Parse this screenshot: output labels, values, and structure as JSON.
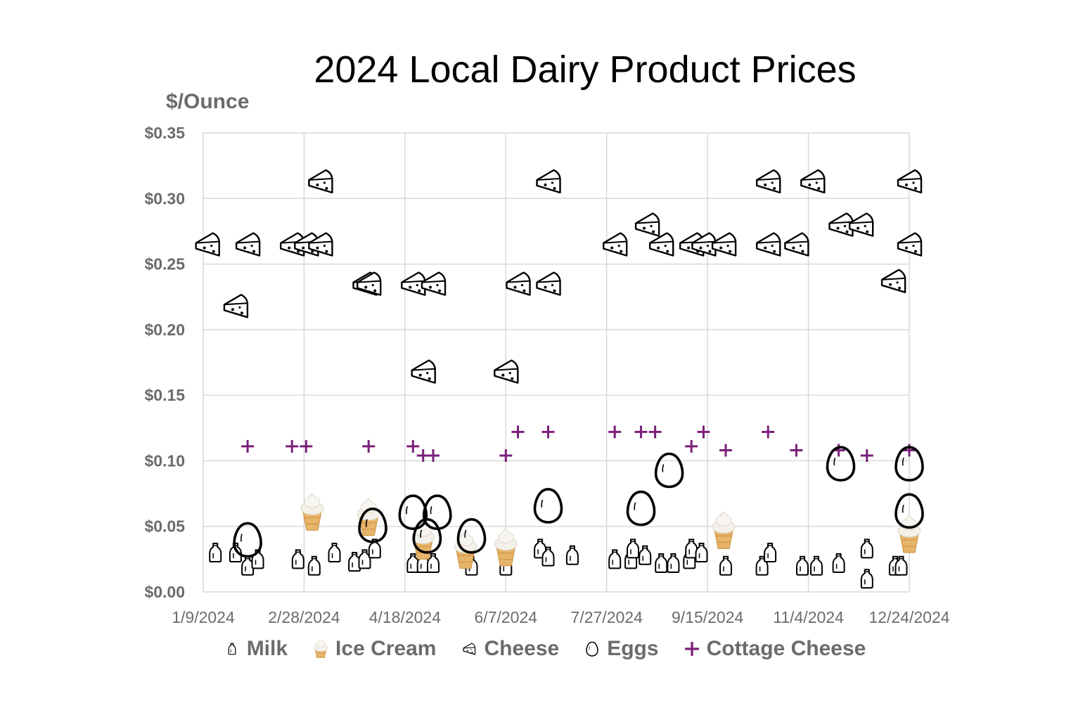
{
  "chart_data": {
    "type": "scatter",
    "title": "2024 Local Dairy Product Prices",
    "ylabel": "$/Ounce",
    "xlabel": "",
    "xlim": [
      "2024-01-09",
      "2024-12-24"
    ],
    "ylim": [
      0,
      0.35
    ],
    "x_ticks": [
      "1/9/2024",
      "2/28/2024",
      "4/18/2024",
      "6/7/2024",
      "7/27/2024",
      "9/15/2024",
      "11/4/2024",
      "12/24/2024"
    ],
    "y_ticks": [
      "$0.00",
      "$0.05",
      "$0.10",
      "$0.15",
      "$0.20",
      "$0.25",
      "$0.30",
      "$0.35"
    ],
    "grid": true,
    "legend_position": "bottom",
    "series": [
      {
        "name": "Milk",
        "marker": "milk-bottle-icon",
        "color": "#000000",
        "points": [
          {
            "x": "2024-01-15",
            "y": 0.03
          },
          {
            "x": "2024-01-25",
            "y": 0.03
          },
          {
            "x": "2024-01-31",
            "y": 0.02
          },
          {
            "x": "2024-02-05",
            "y": 0.025
          },
          {
            "x": "2024-02-25",
            "y": 0.025
          },
          {
            "x": "2024-03-04",
            "y": 0.02
          },
          {
            "x": "2024-03-14",
            "y": 0.03
          },
          {
            "x": "2024-03-24",
            "y": 0.023
          },
          {
            "x": "2024-03-29",
            "y": 0.025
          },
          {
            "x": "2024-04-03",
            "y": 0.033
          },
          {
            "x": "2024-04-22",
            "y": 0.022
          },
          {
            "x": "2024-04-27",
            "y": 0.022
          },
          {
            "x": "2024-05-02",
            "y": 0.022
          },
          {
            "x": "2024-05-21",
            "y": 0.02
          },
          {
            "x": "2024-06-07",
            "y": 0.02
          },
          {
            "x": "2024-06-24",
            "y": 0.033
          },
          {
            "x": "2024-06-28",
            "y": 0.027
          },
          {
            "x": "2024-07-10",
            "y": 0.028
          },
          {
            "x": "2024-07-31",
            "y": 0.025
          },
          {
            "x": "2024-08-08",
            "y": 0.025
          },
          {
            "x": "2024-08-09",
            "y": 0.033
          },
          {
            "x": "2024-08-15",
            "y": 0.028
          },
          {
            "x": "2024-08-23",
            "y": 0.022
          },
          {
            "x": "2024-08-29",
            "y": 0.022
          },
          {
            "x": "2024-09-06",
            "y": 0.025
          },
          {
            "x": "2024-09-07",
            "y": 0.033
          },
          {
            "x": "2024-09-12",
            "y": 0.03
          },
          {
            "x": "2024-09-24",
            "y": 0.02
          },
          {
            "x": "2024-10-12",
            "y": 0.02
          },
          {
            "x": "2024-10-16",
            "y": 0.03
          },
          {
            "x": "2024-11-01",
            "y": 0.02
          },
          {
            "x": "2024-11-08",
            "y": 0.02
          },
          {
            "x": "2024-11-19",
            "y": 0.022
          },
          {
            "x": "2024-12-03",
            "y": 0.033
          },
          {
            "x": "2024-12-03",
            "y": 0.01
          },
          {
            "x": "2024-12-17",
            "y": 0.02
          },
          {
            "x": "2024-12-20",
            "y": 0.02
          }
        ]
      },
      {
        "name": "Ice Cream",
        "marker": "ice-cream-cone-icon",
        "color": "#e8b56a",
        "points": [
          {
            "x": "2024-03-03",
            "y": 0.062
          },
          {
            "x": "2024-03-31",
            "y": 0.058
          },
          {
            "x": "2024-04-27",
            "y": 0.04
          },
          {
            "x": "2024-05-18",
            "y": 0.033
          },
          {
            "x": "2024-06-07",
            "y": 0.035
          },
          {
            "x": "2024-09-23",
            "y": 0.048
          },
          {
            "x": "2024-12-24",
            "y": 0.045
          }
        ]
      },
      {
        "name": "Cheese",
        "marker": "cheese-wedge-icon",
        "color": "#000000",
        "points": [
          {
            "x": "2024-01-11",
            "y": 0.265
          },
          {
            "x": "2024-01-25",
            "y": 0.218
          },
          {
            "x": "2024-01-31",
            "y": 0.265
          },
          {
            "x": "2024-02-22",
            "y": 0.265
          },
          {
            "x": "2024-02-29",
            "y": 0.265
          },
          {
            "x": "2024-03-07",
            "y": 0.265
          },
          {
            "x": "2024-03-07",
            "y": 0.313
          },
          {
            "x": "2024-03-29",
            "y": 0.235
          },
          {
            "x": "2024-03-31",
            "y": 0.235
          },
          {
            "x": "2024-04-22",
            "y": 0.235
          },
          {
            "x": "2024-05-02",
            "y": 0.235
          },
          {
            "x": "2024-04-27",
            "y": 0.168
          },
          {
            "x": "2024-06-07",
            "y": 0.168
          },
          {
            "x": "2024-06-13",
            "y": 0.235
          },
          {
            "x": "2024-06-28",
            "y": 0.235
          },
          {
            "x": "2024-06-28",
            "y": 0.313
          },
          {
            "x": "2024-07-31",
            "y": 0.265
          },
          {
            "x": "2024-08-16",
            "y": 0.28
          },
          {
            "x": "2024-08-23",
            "y": 0.265
          },
          {
            "x": "2024-09-07",
            "y": 0.265
          },
          {
            "x": "2024-09-13",
            "y": 0.265
          },
          {
            "x": "2024-09-23",
            "y": 0.265
          },
          {
            "x": "2024-10-15",
            "y": 0.265
          },
          {
            "x": "2024-10-15",
            "y": 0.313
          },
          {
            "x": "2024-10-29",
            "y": 0.265
          },
          {
            "x": "2024-11-06",
            "y": 0.313
          },
          {
            "x": "2024-11-20",
            "y": 0.28
          },
          {
            "x": "2024-11-30",
            "y": 0.28
          },
          {
            "x": "2024-12-16",
            "y": 0.237
          },
          {
            "x": "2024-12-24",
            "y": 0.313
          },
          {
            "x": "2024-12-24",
            "y": 0.265
          }
        ]
      },
      {
        "name": "Eggs",
        "marker": "egg-icon",
        "color": "#000000",
        "points": [
          {
            "x": "2024-01-31",
            "y": 0.04
          },
          {
            "x": "2024-04-02",
            "y": 0.051
          },
          {
            "x": "2024-04-22",
            "y": 0.061
          },
          {
            "x": "2024-04-29",
            "y": 0.043
          },
          {
            "x": "2024-05-04",
            "y": 0.061
          },
          {
            "x": "2024-05-21",
            "y": 0.043
          },
          {
            "x": "2024-06-28",
            "y": 0.066
          },
          {
            "x": "2024-08-13",
            "y": 0.064
          },
          {
            "x": "2024-08-27",
            "y": 0.093
          },
          {
            "x": "2024-11-20",
            "y": 0.098
          },
          {
            "x": "2024-12-24",
            "y": 0.098
          },
          {
            "x": "2024-12-24",
            "y": 0.062
          }
        ]
      },
      {
        "name": "Cottage Cheese",
        "marker": "plus",
        "color": "#7a1f7a",
        "points": [
          {
            "x": "2024-01-31",
            "y": 0.111
          },
          {
            "x": "2024-02-22",
            "y": 0.111
          },
          {
            "x": "2024-02-29",
            "y": 0.111
          },
          {
            "x": "2024-03-31",
            "y": 0.111
          },
          {
            "x": "2024-04-22",
            "y": 0.111
          },
          {
            "x": "2024-04-27",
            "y": 0.104
          },
          {
            "x": "2024-05-02",
            "y": 0.104
          },
          {
            "x": "2024-06-07",
            "y": 0.104
          },
          {
            "x": "2024-06-13",
            "y": 0.122
          },
          {
            "x": "2024-06-28",
            "y": 0.122
          },
          {
            "x": "2024-07-31",
            "y": 0.122
          },
          {
            "x": "2024-08-13",
            "y": 0.122
          },
          {
            "x": "2024-08-20",
            "y": 0.122
          },
          {
            "x": "2024-09-07",
            "y": 0.111
          },
          {
            "x": "2024-09-13",
            "y": 0.122
          },
          {
            "x": "2024-09-24",
            "y": 0.108
          },
          {
            "x": "2024-10-15",
            "y": 0.122
          },
          {
            "x": "2024-10-29",
            "y": 0.108
          },
          {
            "x": "2024-11-19",
            "y": 0.108
          },
          {
            "x": "2024-12-03",
            "y": 0.104
          },
          {
            "x": "2024-12-24",
            "y": 0.108
          }
        ]
      }
    ]
  }
}
